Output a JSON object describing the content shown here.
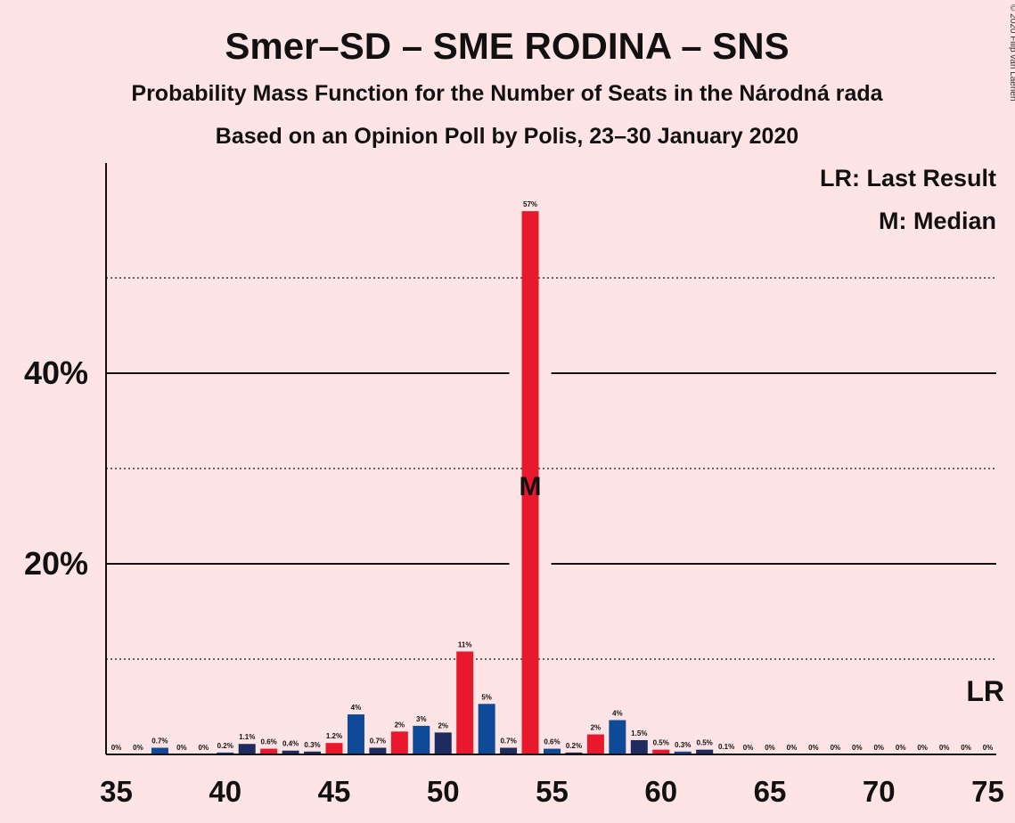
{
  "chart_data": {
    "type": "bar",
    "title": "Smer–SD – SME RODINA – SNS",
    "subtitle": "Probability Mass Function for the Number of Seats in the Národná rada",
    "subtitle2": "Based on an Opinion Poll by Polis, 23–30 January 2020",
    "copyright": "© 2020 Filip van Laenen",
    "legend": {
      "last_result": "LR: Last Result",
      "median": "M: Median",
      "placement": "top-right"
    },
    "lr_marker": "LR",
    "median_marker": "M",
    "median_seat": 54,
    "xlim": [
      35,
      75
    ],
    "ylim": [
      0,
      62
    ],
    "x_ticks": [
      35,
      40,
      45,
      50,
      55,
      60,
      65,
      70,
      75
    ],
    "x_tick_labels": [
      "35",
      "40",
      "45",
      "50",
      "55",
      "60",
      "65",
      "70",
      "75"
    ],
    "y_major_ticks": [
      20,
      40
    ],
    "y_tick_labels": [
      "20%",
      "40%"
    ],
    "y_minor_gridlines": [
      10,
      30,
      50
    ],
    "colors": {
      "red": "#e8192d",
      "navy": "#1e2b5e",
      "blue": "#0e4a97"
    },
    "bars": [
      {
        "x": 35,
        "value": 0,
        "label": "0%",
        "color": "#0e4a97"
      },
      {
        "x": 36,
        "value": 0,
        "label": "0%",
        "color": "#0e4a97"
      },
      {
        "x": 37,
        "value": 0.7,
        "label": "0.7%",
        "color": "#0e4a97"
      },
      {
        "x": 38,
        "value": 0,
        "label": "0%",
        "color": "#0e4a97"
      },
      {
        "x": 39,
        "value": 0,
        "label": "0%",
        "color": "#0e4a97"
      },
      {
        "x": 40,
        "value": 0.2,
        "label": "0.2%",
        "color": "#0e4a97"
      },
      {
        "x": 41,
        "value": 1.1,
        "label": "1.1%",
        "color": "#1e2b5e"
      },
      {
        "x": 42,
        "value": 0.6,
        "label": "0.6%",
        "color": "#e8192d"
      },
      {
        "x": 43,
        "value": 0.4,
        "label": "0.4%",
        "color": "#1e2b5e"
      },
      {
        "x": 44,
        "value": 0.3,
        "label": "0.3%",
        "color": "#1e2b5e"
      },
      {
        "x": 45,
        "value": 1.2,
        "label": "1.2%",
        "color": "#e8192d"
      },
      {
        "x": 46,
        "value": 4.2,
        "label": "4%",
        "color": "#0e4a97"
      },
      {
        "x": 47,
        "value": 0.7,
        "label": "0.7%",
        "color": "#1e2b5e"
      },
      {
        "x": 48,
        "value": 2.4,
        "label": "2%",
        "color": "#e8192d"
      },
      {
        "x": 49,
        "value": 3.0,
        "label": "3%",
        "color": "#0e4a97"
      },
      {
        "x": 50,
        "value": 2.3,
        "label": "2%",
        "color": "#1e2b5e"
      },
      {
        "x": 51,
        "value": 10.8,
        "label": "11%",
        "color": "#e8192d"
      },
      {
        "x": 52,
        "value": 5.3,
        "label": "5%",
        "color": "#0e4a97"
      },
      {
        "x": 53,
        "value": 0.7,
        "label": "0.7%",
        "color": "#1e2b5e"
      },
      {
        "x": 54,
        "value": 57,
        "label": "57%",
        "color": "#e8192d"
      },
      {
        "x": 55,
        "value": 0.6,
        "label": "0.6%",
        "color": "#0e4a97"
      },
      {
        "x": 56,
        "value": 0.2,
        "label": "0.2%",
        "color": "#1e2b5e"
      },
      {
        "x": 57,
        "value": 2.1,
        "label": "2%",
        "color": "#e8192d"
      },
      {
        "x": 58,
        "value": 3.6,
        "label": "4%",
        "color": "#0e4a97"
      },
      {
        "x": 59,
        "value": 1.5,
        "label": "1.5%",
        "color": "#1e2b5e"
      },
      {
        "x": 60,
        "value": 0.5,
        "label": "0.5%",
        "color": "#e8192d"
      },
      {
        "x": 61,
        "value": 0.3,
        "label": "0.3%",
        "color": "#0e4a97"
      },
      {
        "x": 62,
        "value": 0.5,
        "label": "0.5%",
        "color": "#1e2b5e"
      },
      {
        "x": 63,
        "value": 0.1,
        "label": "0.1%",
        "color": "#e8192d"
      },
      {
        "x": 64,
        "value": 0,
        "label": "0%",
        "color": "#0e4a97"
      },
      {
        "x": 65,
        "value": 0,
        "label": "0%",
        "color": "#0e4a97"
      },
      {
        "x": 66,
        "value": 0,
        "label": "0%",
        "color": "#0e4a97"
      },
      {
        "x": 67,
        "value": 0,
        "label": "0%",
        "color": "#0e4a97"
      },
      {
        "x": 68,
        "value": 0,
        "label": "0%",
        "color": "#0e4a97"
      },
      {
        "x": 69,
        "value": 0,
        "label": "0%",
        "color": "#0e4a97"
      },
      {
        "x": 70,
        "value": 0,
        "label": "0%",
        "color": "#0e4a97"
      },
      {
        "x": 71,
        "value": 0,
        "label": "0%",
        "color": "#0e4a97"
      },
      {
        "x": 72,
        "value": 0,
        "label": "0%",
        "color": "#0e4a97"
      },
      {
        "x": 73,
        "value": 0,
        "label": "0%",
        "color": "#0e4a97"
      },
      {
        "x": 74,
        "value": 0,
        "label": "0%",
        "color": "#0e4a97"
      },
      {
        "x": 75,
        "value": 0,
        "label": "0%",
        "color": "#0e4a97"
      }
    ]
  }
}
